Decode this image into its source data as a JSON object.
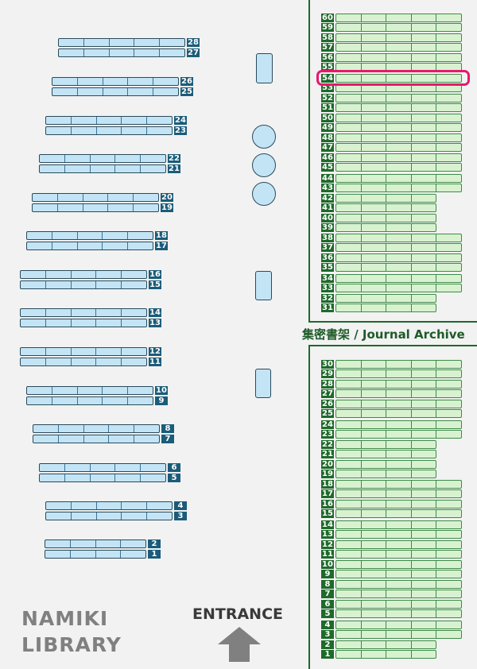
{
  "library_name": {
    "line1": "NAMIKI",
    "line2": "LIBRARY"
  },
  "entrance": {
    "label": "ENTRANCE",
    "icon": "arrow-up-icon"
  },
  "archive_label": "集密書架 / Journal Archive",
  "colors": {
    "open_shelf": "#c3e4f5",
    "open_label": "#1a5c7a",
    "archive_shelf": "#d8f2d0",
    "archive_label": "#1e6a2a",
    "highlight": "#e8186e"
  },
  "highlighted_shelf": "54",
  "open_shelves": [
    "28",
    "27",
    "26",
    "25",
    "24",
    "23",
    "22",
    "21",
    "20",
    "19",
    "18",
    "17",
    "16",
    "15",
    "14",
    "13",
    "12",
    "11",
    "10",
    "9",
    "8",
    "7",
    "6",
    "5",
    "4",
    "3",
    "2",
    "1"
  ],
  "archive_upper": [
    "60",
    "59",
    "58",
    "57",
    "56",
    "55",
    "54",
    "53",
    "52",
    "51",
    "50",
    "49",
    "48",
    "47",
    "46",
    "45",
    "44",
    "43",
    "42",
    "41",
    "40",
    "39",
    "38",
    "37",
    "36",
    "35",
    "34",
    "33",
    "32",
    "31"
  ],
  "archive_lower": [
    "30",
    "29",
    "28",
    "27",
    "26",
    "25",
    "24",
    "23",
    "22",
    "21",
    "20",
    "19",
    "18",
    "17",
    "16",
    "15",
    "14",
    "13",
    "12",
    "11",
    "10",
    "9",
    "8",
    "7",
    "6",
    "5",
    "4",
    "3",
    "2",
    "1"
  ]
}
